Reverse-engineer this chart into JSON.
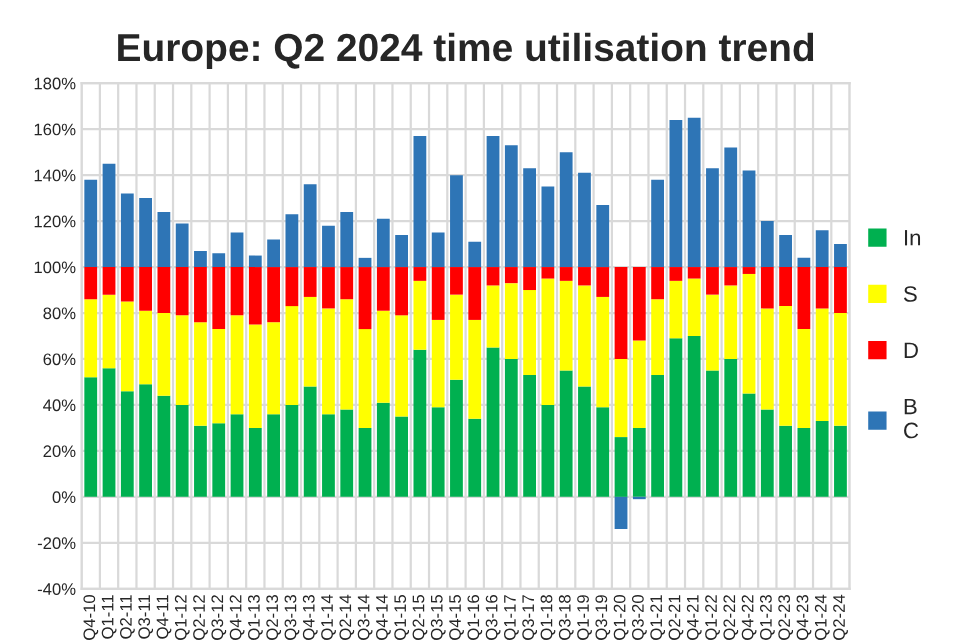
{
  "chart_data": {
    "type": "bar",
    "title": "Europe: Q2 2024 time utilisation trend",
    "stacked": true,
    "categories": [
      "Q4-10",
      "Q1-11",
      "Q2-11",
      "Q3-11",
      "Q4-11",
      "Q1-12",
      "Q2-12",
      "Q3-12",
      "Q4-12",
      "Q1-13",
      "Q2-13",
      "Q3-13",
      "Q4-13",
      "Q1-14",
      "Q2-14",
      "Q3-14",
      "Q4-14",
      "Q1-15",
      "Q2-15",
      "Q3-15",
      "Q4-15",
      "Q1-16",
      "Q3-16",
      "Q1-17",
      "Q3-17",
      "Q1-18",
      "Q3-18",
      "Q1-19",
      "Q3-19",
      "Q1-20",
      "Q3-20",
      "Q1-21",
      "Q2-21",
      "Q4-21",
      "Q1-22",
      "Q2-22",
      "Q4-22",
      "Q1-23",
      "Q2-23",
      "Q4-23",
      "Q1-24",
      "Q2-24"
    ],
    "series": [
      {
        "name": "In",
        "color": "#00b050",
        "values": [
          52,
          56,
          46,
          49,
          44,
          40,
          31,
          32,
          36,
          30,
          36,
          40,
          48,
          36,
          38,
          30,
          41,
          35,
          64,
          39,
          51,
          34,
          65,
          60,
          53,
          40,
          55,
          48,
          39,
          26,
          30,
          53,
          69,
          70,
          55,
          60,
          45,
          38,
          31,
          30,
          33,
          31
        ]
      },
      {
        "name": "S",
        "color": "#ffff00",
        "values": [
          34,
          32,
          39,
          32,
          36,
          39,
          45,
          41,
          43,
          45,
          40,
          43,
          39,
          46,
          48,
          43,
          40,
          44,
          30,
          38,
          37,
          43,
          27,
          33,
          37,
          55,
          39,
          44,
          48,
          34,
          38,
          33,
          25,
          25,
          33,
          32,
          52,
          44,
          52,
          43,
          49,
          49
        ]
      },
      {
        "name": "D",
        "color": "#ff0000",
        "values": [
          14,
          12,
          15,
          19,
          20,
          21,
          24,
          27,
          21,
          25,
          24,
          17,
          13,
          18,
          14,
          27,
          19,
          21,
          6,
          23,
          12,
          23,
          8,
          7,
          10,
          5,
          6,
          8,
          13,
          40,
          32,
          14,
          6,
          5,
          12,
          8,
          3,
          18,
          17,
          27,
          18,
          20
        ]
      },
      {
        "name": "B\nC",
        "color": "#2e75b6",
        "values": [
          38,
          45,
          32,
          30,
          24,
          19,
          7,
          6,
          15,
          5,
          12,
          23,
          36,
          18,
          24,
          4,
          21,
          14,
          57,
          15,
          40,
          11,
          57,
          53,
          43,
          35,
          50,
          41,
          27,
          -14,
          -1,
          38,
          64,
          65,
          43,
          52,
          42,
          20,
          14,
          4,
          16,
          10
        ]
      }
    ],
    "ylim": [
      -40,
      180
    ],
    "yticks": [
      {
        "value": -40,
        "label": "-40%"
      },
      {
        "value": -20,
        "label": "-20%"
      },
      {
        "value": 0,
        "label": "0%"
      },
      {
        "value": 20,
        "label": "20%"
      },
      {
        "value": 40,
        "label": "40%"
      },
      {
        "value": 60,
        "label": "60%"
      },
      {
        "value": 80,
        "label": "80%"
      },
      {
        "value": 100,
        "label": "100%"
      },
      {
        "value": 120,
        "label": "120%"
      },
      {
        "value": 140,
        "label": "140%"
      },
      {
        "value": 160,
        "label": "160%"
      },
      {
        "value": 180,
        "label": "180%"
      }
    ],
    "grid": true,
    "legend": "right"
  }
}
